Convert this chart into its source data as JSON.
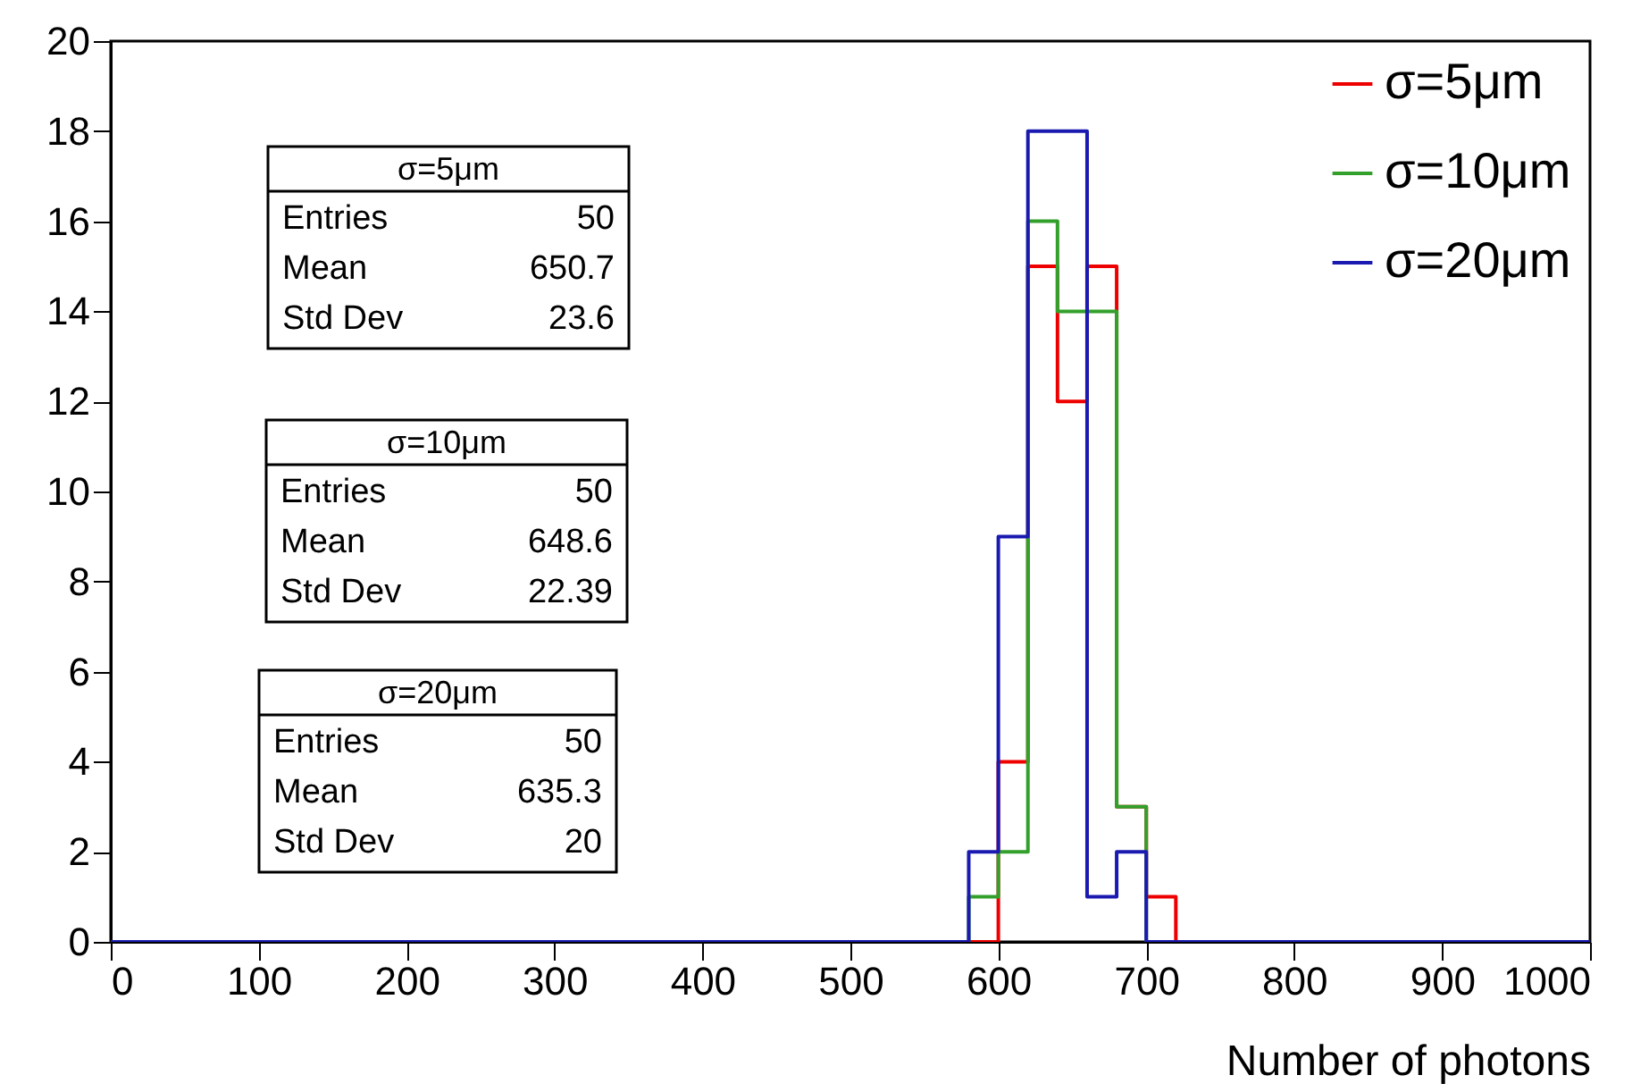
{
  "chart_data": {
    "type": "histogram",
    "xlabel": "Number of photons",
    "bins": [
      0,
      20,
      40,
      60,
      80,
      100,
      120,
      140,
      160,
      180,
      200,
      220,
      240,
      260,
      280,
      300,
      320,
      340,
      360,
      380,
      400,
      420,
      440,
      460,
      480,
      500,
      520,
      540,
      560,
      580,
      600,
      620,
      640,
      660,
      680,
      700,
      720,
      740,
      760,
      780,
      800,
      820,
      840,
      860,
      880,
      900,
      920,
      940,
      960,
      980,
      1000
    ],
    "series": [
      {
        "name": "σ=5μm",
        "color": "#ee0000",
        "values": [
          0,
          0,
          0,
          0,
          0,
          0,
          0,
          0,
          0,
          0,
          0,
          0,
          0,
          0,
          0,
          0,
          0,
          0,
          0,
          0,
          0,
          0,
          0,
          0,
          0,
          0,
          0,
          0,
          0,
          0,
          4,
          15,
          12,
          15,
          3,
          1,
          0,
          0,
          0,
          0,
          0,
          0,
          0,
          0,
          0,
          0,
          0,
          0,
          0,
          0
        ]
      },
      {
        "name": "σ=10μm",
        "color": "#33a02c",
        "values": [
          0,
          0,
          0,
          0,
          0,
          0,
          0,
          0,
          0,
          0,
          0,
          0,
          0,
          0,
          0,
          0,
          0,
          0,
          0,
          0,
          0,
          0,
          0,
          0,
          0,
          0,
          0,
          0,
          0,
          1,
          2,
          16,
          14,
          14,
          3,
          0,
          0,
          0,
          0,
          0,
          0,
          0,
          0,
          0,
          0,
          0,
          0,
          0,
          0,
          0
        ]
      },
      {
        "name": "σ=20μm",
        "color": "#1a1ab0",
        "values": [
          0,
          0,
          0,
          0,
          0,
          0,
          0,
          0,
          0,
          0,
          0,
          0,
          0,
          0,
          0,
          0,
          0,
          0,
          0,
          0,
          0,
          0,
          0,
          0,
          0,
          0,
          0,
          0,
          0,
          2,
          9,
          18,
          18,
          1,
          2,
          0,
          0,
          0,
          0,
          0,
          0,
          0,
          0,
          0,
          0,
          0,
          0,
          0,
          0,
          0
        ]
      }
    ],
    "xlim": [
      0,
      1000
    ],
    "xticks": [
      0,
      100,
      200,
      300,
      400,
      500,
      600,
      700,
      800,
      900,
      1000
    ],
    "ylim": [
      0,
      20
    ],
    "yticks": [
      0,
      2,
      4,
      6,
      8,
      10,
      12,
      14,
      16,
      18,
      20
    ],
    "grid": false,
    "legend": "top right",
    "annotations": [
      "σ=5μm",
      "Entries 50",
      "Mean 650.7",
      "Std Dev 23.6",
      "σ=10μm",
      "Entries 50",
      "Mean 648.6",
      "Std Dev 22.39",
      "σ=20μm",
      "Entries 50",
      "Mean 635.3",
      "Std Dev 20"
    ]
  }
}
